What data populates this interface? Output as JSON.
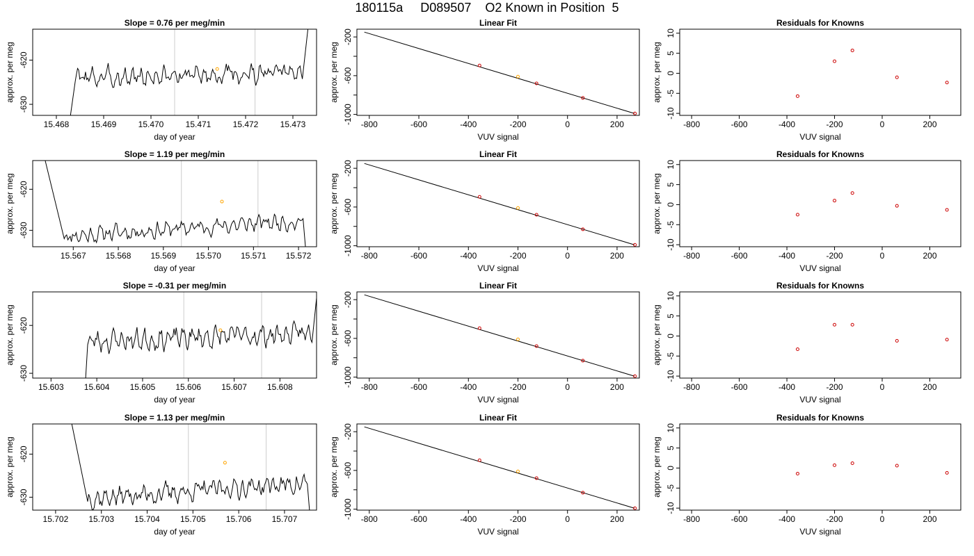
{
  "figure_title": "180115a     D089507    O2 Known in Position  5",
  "colors": {
    "trace": "#000000",
    "vline": "#cccccc",
    "point": "#cc0000",
    "highlight": "#ffa500"
  },
  "chart_data": [
    {
      "type": "line",
      "title": "Slope =  0.76  per meg/min",
      "xlabel": "day of year",
      "ylabel": "approx. per meg",
      "xlim": [
        15.4675,
        15.4735
      ],
      "ylim": [
        -632.5,
        -613
      ],
      "xticks": [
        15.468,
        15.469,
        15.47,
        15.471,
        15.472,
        15.473
      ],
      "xtick_labels": [
        "15.468",
        "15.469",
        "15.470",
        "15.471",
        "15.472",
        "15.473"
      ],
      "yticks": [
        -630,
        -620
      ],
      "ytick_labels": [
        "-630",
        "-620"
      ],
      "vlines": [
        15.4705,
        15.4722
      ],
      "highlight_point": {
        "x": 15.4714,
        "y": -622
      },
      "trace": {
        "x_start": 15.4684,
        "x_end": 15.4732,
        "base": -623.5,
        "slope": 0.5,
        "wiggle": 2.6,
        "seed": 3,
        "lead_from": -640,
        "tail_to": -605,
        "lead_len": 0.0002,
        "tail_len": 0.0002
      }
    },
    {
      "type": "scatter",
      "title": "Linear Fit",
      "xlabel": "VUV signal",
      "ylabel": "approx. per meg",
      "xlim": [
        -850,
        290
      ],
      "ylim": [
        -1010,
        -120
      ],
      "xticks": [
        -800,
        -600,
        -400,
        -200,
        0,
        200
      ],
      "xtick_labels": [
        "-800",
        "-600",
        "-400",
        "-200",
        "0",
        "200"
      ],
      "yticks": [
        -1000,
        -600,
        -200
      ],
      "ytick_labels": [
        "-1000",
        "-600",
        "-200"
      ],
      "yticks_minor": [
        -800,
        -400
      ],
      "line": {
        "x": [
          -820,
          270
        ],
        "y": [
          -150,
          -990
        ]
      },
      "x": [
        -355,
        -200,
        -125,
        62,
        272
      ],
      "y": [
        -495,
        -610,
        -680,
        -830,
        -990
      ],
      "highlight_index": 1
    },
    {
      "type": "scatter",
      "title": "Residuals for Knowns",
      "xlabel": "VUV signal",
      "ylabel": "approx. per meg",
      "xlim": [
        -850,
        330
      ],
      "ylim": [
        -10.5,
        11
      ],
      "xticks": [
        -800,
        -600,
        -400,
        -200,
        0,
        200
      ],
      "xtick_labels": [
        "-800",
        "-600",
        "-400",
        "-200",
        "0",
        "200"
      ],
      "yticks": [
        -10,
        -5,
        0,
        5,
        10
      ],
      "ytick_labels": [
        "-10",
        "-5",
        "0",
        "5",
        "10"
      ],
      "x": [
        -355,
        -200,
        -125,
        62,
        272
      ],
      "y": [
        -5.7,
        3.0,
        5.7,
        -1.0,
        -2.3
      ]
    },
    {
      "type": "line",
      "title": "Slope =  1.19  per meg/min",
      "xlabel": "day of year",
      "ylabel": "approx. per meg",
      "xlim": [
        15.5661,
        15.5724
      ],
      "ylim": [
        -634,
        -613
      ],
      "xticks": [
        15.567,
        15.568,
        15.569,
        15.57,
        15.571,
        15.572
      ],
      "xtick_labels": [
        "15.567",
        "15.568",
        "15.569",
        "15.570",
        "15.571",
        "15.572"
      ],
      "yticks": [
        -630,
        -620
      ],
      "ytick_labels": [
        "-630",
        "-620"
      ],
      "vlines": [
        15.5694,
        15.5711
      ],
      "highlight_point": {
        "x": 15.5703,
        "y": -623
      },
      "trace": {
        "x_start": 15.5668,
        "x_end": 15.5721,
        "base": -629.5,
        "slope": 1.9,
        "wiggle": 2.3,
        "seed": 11,
        "lead_from": -605,
        "tail_to": -640,
        "lead_len": 0.0006,
        "tail_len": 0.0001
      }
    },
    {
      "type": "scatter",
      "title": "Linear Fit",
      "xlabel": "VUV signal",
      "ylabel": "approx. per meg",
      "xlim": [
        -850,
        290
      ],
      "ylim": [
        -1010,
        -120
      ],
      "xticks": [
        -800,
        -600,
        -400,
        -200,
        0,
        200
      ],
      "xtick_labels": [
        "-800",
        "-600",
        "-400",
        "-200",
        "0",
        "200"
      ],
      "yticks": [
        -1000,
        -600,
        -200
      ],
      "ytick_labels": [
        "-1000",
        "-600",
        "-200"
      ],
      "yticks_minor": [
        -800,
        -400
      ],
      "line": {
        "x": [
          -820,
          270
        ],
        "y": [
          -150,
          -990
        ]
      },
      "x": [
        -355,
        -200,
        -125,
        62,
        272
      ],
      "y": [
        -495,
        -610,
        -680,
        -830,
        -990
      ],
      "highlight_index": 1
    },
    {
      "type": "scatter",
      "title": "Residuals for Knowns",
      "xlabel": "VUV signal",
      "ylabel": "approx. per meg",
      "xlim": [
        -850,
        330
      ],
      "ylim": [
        -10.5,
        11
      ],
      "xticks": [
        -800,
        -600,
        -400,
        -200,
        0,
        200
      ],
      "xtick_labels": [
        "-800",
        "-600",
        "-400",
        "-200",
        "0",
        "200"
      ],
      "yticks": [
        -10,
        -5,
        0,
        5,
        10
      ],
      "ytick_labels": [
        "-10",
        "-5",
        "0",
        "5",
        "10"
      ],
      "x": [
        -355,
        -200,
        -125,
        62,
        272
      ],
      "y": [
        -2.5,
        1.0,
        2.9,
        -0.3,
        -1.3
      ]
    },
    {
      "type": "line",
      "title": "Slope =  -0.31  per meg/min",
      "xlabel": "day of year",
      "ylabel": "approx. per meg",
      "xlim": [
        15.6026,
        15.6088
      ],
      "ylim": [
        -631,
        -613
      ],
      "xticks": [
        15.603,
        15.604,
        15.605,
        15.606,
        15.607,
        15.608
      ],
      "xtick_labels": [
        "15.603",
        "15.604",
        "15.605",
        "15.606",
        "15.607",
        "15.608"
      ],
      "yticks": [
        -630,
        -620
      ],
      "ytick_labels": [
        "-630",
        "-620"
      ],
      "vlines": [
        15.6059,
        15.6076
      ],
      "highlight_point": {
        "x": 15.6067,
        "y": -621
      },
      "trace": {
        "x_start": 15.6038,
        "x_end": 15.6087,
        "base": -622.5,
        "slope": 0.8,
        "wiggle": 2.6,
        "seed": 23,
        "lead_from": -640,
        "tail_to": -605,
        "lead_len": 0.0001,
        "tail_len": 0.0002
      }
    },
    {
      "type": "scatter",
      "title": "Linear Fit",
      "xlabel": "VUV signal",
      "ylabel": "approx. per meg",
      "xlim": [
        -850,
        290
      ],
      "ylim": [
        -1010,
        -120
      ],
      "xticks": [
        -800,
        -600,
        -400,
        -200,
        0,
        200
      ],
      "xtick_labels": [
        "-800",
        "-600",
        "-400",
        "-200",
        "0",
        "200"
      ],
      "yticks": [
        -1000,
        -600,
        -200
      ],
      "ytick_labels": [
        "-1000",
        "-600",
        "-200"
      ],
      "yticks_minor": [
        -800,
        -400
      ],
      "line": {
        "x": [
          -820,
          270
        ],
        "y": [
          -150,
          -990
        ]
      },
      "x": [
        -355,
        -200,
        -125,
        62,
        272
      ],
      "y": [
        -495,
        -610,
        -680,
        -830,
        -990
      ],
      "highlight_index": 1
    },
    {
      "type": "scatter",
      "title": "Residuals for Knowns",
      "xlabel": "VUV signal",
      "ylabel": "approx. per meg",
      "xlim": [
        -850,
        330
      ],
      "ylim": [
        -10.5,
        11
      ],
      "xticks": [
        -800,
        -600,
        -400,
        -200,
        0,
        200
      ],
      "xtick_labels": [
        "-800",
        "-600",
        "-400",
        "-200",
        "0",
        "200"
      ],
      "yticks": [
        -10,
        -5,
        0,
        5,
        10
      ],
      "ytick_labels": [
        "-10",
        "-5",
        "0",
        "5",
        "10"
      ],
      "x": [
        -355,
        -200,
        -125,
        62,
        272
      ],
      "y": [
        -3.3,
        2.8,
        2.8,
        -1.2,
        -0.9
      ]
    },
    {
      "type": "line",
      "title": "Slope =  1.13  per meg/min",
      "xlabel": "day of year",
      "ylabel": "approx. per meg",
      "xlim": [
        15.7015,
        15.7077
      ],
      "ylim": [
        -633,
        -613
      ],
      "xticks": [
        15.702,
        15.703,
        15.704,
        15.705,
        15.706,
        15.707
      ],
      "xtick_labels": [
        "15.702",
        "15.703",
        "15.704",
        "15.705",
        "15.706",
        "15.707"
      ],
      "yticks": [
        -630,
        -620
      ],
      "ytick_labels": [
        "-630",
        "-620"
      ],
      "vlines": [
        15.7049,
        15.7066
      ],
      "highlight_point": {
        "x": 15.7057,
        "y": -622
      },
      "trace": {
        "x_start": 15.7027,
        "x_end": 15.7075,
        "base": -628.5,
        "slope": 1.8,
        "wiggle": 2.6,
        "seed": 37,
        "lead_from": -605,
        "tail_to": -640,
        "lead_len": 0.0005,
        "tail_len": 0.0001
      }
    },
    {
      "type": "scatter",
      "title": "Linear Fit",
      "xlabel": "VUV signal",
      "ylabel": "approx. per meg",
      "xlim": [
        -850,
        290
      ],
      "ylim": [
        -1010,
        -120
      ],
      "xticks": [
        -800,
        -600,
        -400,
        -200,
        0,
        200
      ],
      "xtick_labels": [
        "-800",
        "-600",
        "-400",
        "-200",
        "0",
        "200"
      ],
      "yticks": [
        -1000,
        -600,
        -200
      ],
      "ytick_labels": [
        "-1000",
        "-600",
        "-200"
      ],
      "yticks_minor": [
        -800,
        -400
      ],
      "line": {
        "x": [
          -820,
          270
        ],
        "y": [
          -150,
          -990
        ]
      },
      "x": [
        -355,
        -200,
        -125,
        62,
        272
      ],
      "y": [
        -495,
        -610,
        -680,
        -830,
        -990
      ],
      "highlight_index": 1
    },
    {
      "type": "scatter",
      "title": "Residuals for Knowns",
      "xlabel": "VUV signal",
      "ylabel": "approx. per meg",
      "xlim": [
        -850,
        330
      ],
      "ylim": [
        -10.5,
        11
      ],
      "xticks": [
        -800,
        -600,
        -400,
        -200,
        0,
        200
      ],
      "xtick_labels": [
        "-800",
        "-600",
        "-400",
        "-200",
        "0",
        "200"
      ],
      "yticks": [
        -10,
        -5,
        0,
        5,
        10
      ],
      "ytick_labels": [
        "-10",
        "-5",
        "0",
        "5",
        "10"
      ],
      "x": [
        -355,
        -200,
        -125,
        62,
        272
      ],
      "y": [
        -1.4,
        0.7,
        1.2,
        0.6,
        -1.2
      ]
    }
  ]
}
